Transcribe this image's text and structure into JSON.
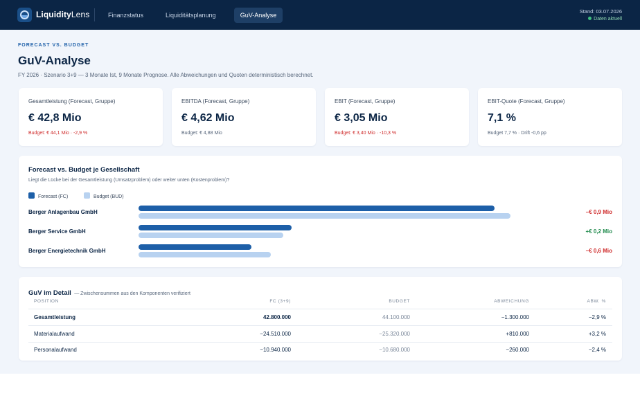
{
  "app": {
    "brand_bold": "Liquidity",
    "brand_light": "Lens",
    "nav": [
      {
        "label": "Finanzstatus",
        "active": false
      },
      {
        "label": "Liquiditätsplanung",
        "active": false
      },
      {
        "label": "GuV-Analyse",
        "active": true
      }
    ],
    "stand": "Stand: 03.07.2026",
    "status": "Daten aktuell"
  },
  "page": {
    "eyebrow": "FORECAST VS. BUDGET",
    "title": "GuV-Analyse",
    "subtitle": "FY 2026 · Szenario 3+9 — 3 Monate Ist, 9 Monate Prognose. Alle Abweichungen und Quoten deterministisch berechnet."
  },
  "kpis": [
    {
      "label": "Gesamtleistung (Forecast, Gruppe)",
      "value": "€ 42,8 Mio",
      "note": "Budget: € 44,1 Mio · -2,9 %",
      "negative": true
    },
    {
      "label": "EBITDA (Forecast, Gruppe)",
      "value": "€ 4,62 Mio",
      "note": "Budget: € 4,88 Mio",
      "negative": false
    },
    {
      "label": "EBIT (Forecast, Gruppe)",
      "value": "€ 3,05 Mio",
      "note": "Budget: € 3,40 Mio · -10,3 %",
      "negative": true
    },
    {
      "label": "EBIT-Quote (Forecast, Gruppe)",
      "value": "7,1 %",
      "note": "Budget 7,7 % · Drift -0,6 pp",
      "negative": false
    }
  ],
  "comparison": {
    "title": "Forecast vs. Budget je Gesellschaft",
    "subtitle": "Liegt die Lücke bei der Gesamtleistung (Umsatzproblem) oder weiter unten (Kostenproblem)?",
    "legend_fc": "Forecast (FC)",
    "legend_bud": "Budget (BUD)",
    "colors": {
      "fc": "#1d5fa8",
      "bud": "#b8d2f0"
    },
    "companies": [
      {
        "name": "Berger Anlagenbau GmbH",
        "fc_share": 0.857,
        "bud_share": 0.895,
        "diff": "−€ 0,9 Mio",
        "negative": true
      },
      {
        "name": "Berger Service GmbH",
        "fc_share": 0.369,
        "bud_share": 0.349,
        "diff": "+€ 0,2 Mio",
        "negative": false
      },
      {
        "name": "Berger Energietechnik GmbH",
        "fc_share": 0.272,
        "bud_share": 0.319,
        "diff": "−€ 0,6 Mio",
        "negative": true
      }
    ]
  },
  "detail": {
    "title": "GuV im Detail",
    "subtitle": "— Zwischensummen aus den Komponenten verifiziert",
    "headers": {
      "position": "POSITION",
      "fc": "FC (3+9)",
      "budget": "BUDGET",
      "diff": "ABWEICHUNG",
      "pct": "ABW. %"
    },
    "rows": [
      {
        "position": "Gesamtleistung",
        "fc": "42.800.000",
        "budget": "44.100.000",
        "diff": "−1.300.000",
        "pct": "−2,9 %",
        "negative": true,
        "bold": true
      },
      {
        "position": "Materialaufwand",
        "fc": "−24.510.000",
        "budget": "−25.320.000",
        "diff": "+810.000",
        "pct": "+3,2 %",
        "negative": false,
        "bold": false
      },
      {
        "position": "Personalaufwand",
        "fc": "−10.940.000",
        "budget": "−10.680.000",
        "diff": "−260.000",
        "pct": "−2,4 %",
        "negative": true,
        "bold": false
      }
    ]
  }
}
